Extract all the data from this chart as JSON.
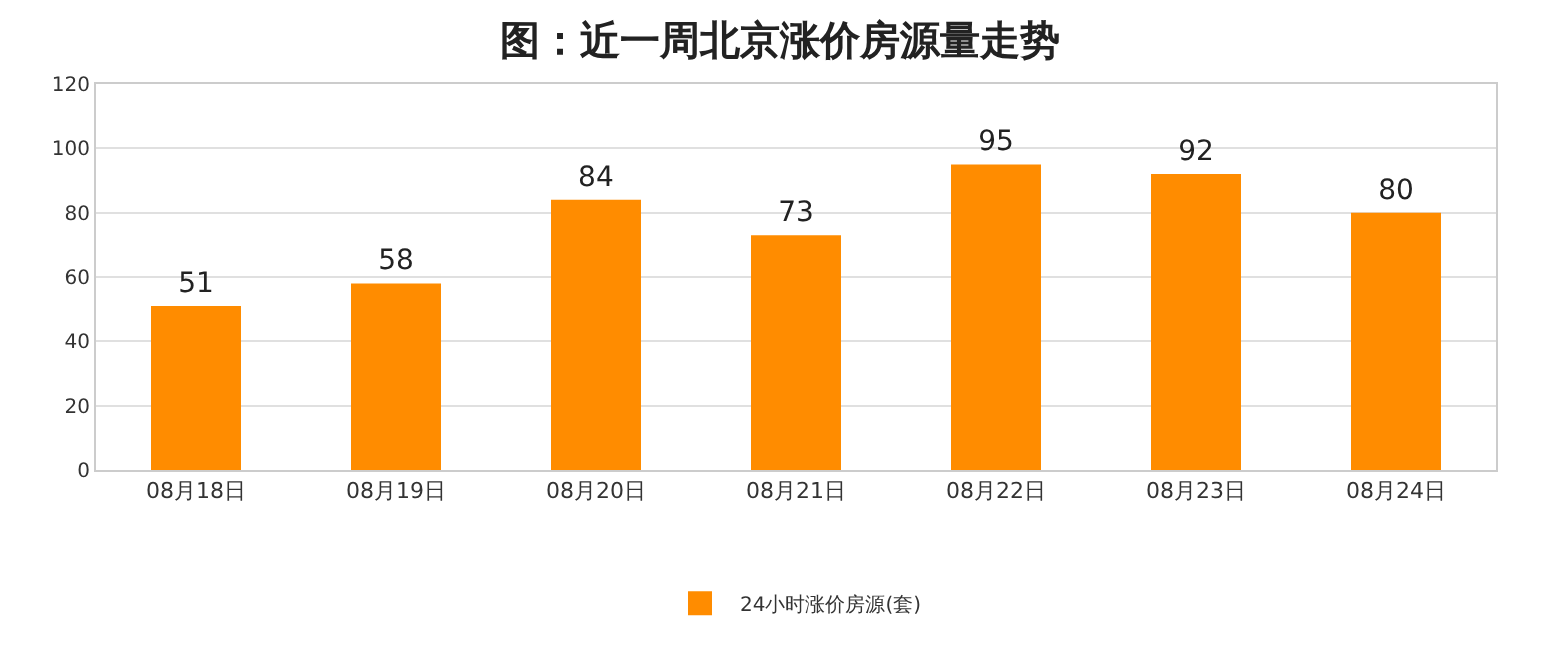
{
  "chart_data": {
    "type": "bar",
    "title": "图：近一周北京涨价房源量走势",
    "categories": [
      "08月18日",
      "08月19日",
      "08月20日",
      "08月21日",
      "08月22日",
      "08月23日",
      "08月24日"
    ],
    "series": [
      {
        "name": "24小时涨价房源(套)",
        "color": "#ff8c00",
        "values": [
          51,
          58,
          84,
          73,
          95,
          92,
          80
        ]
      }
    ],
    "ylim": [
      0,
      120
    ],
    "yticks": [
      0,
      20,
      40,
      60,
      80,
      100,
      120
    ],
    "grid": "y",
    "legend": "bottom",
    "data_labels": true
  }
}
